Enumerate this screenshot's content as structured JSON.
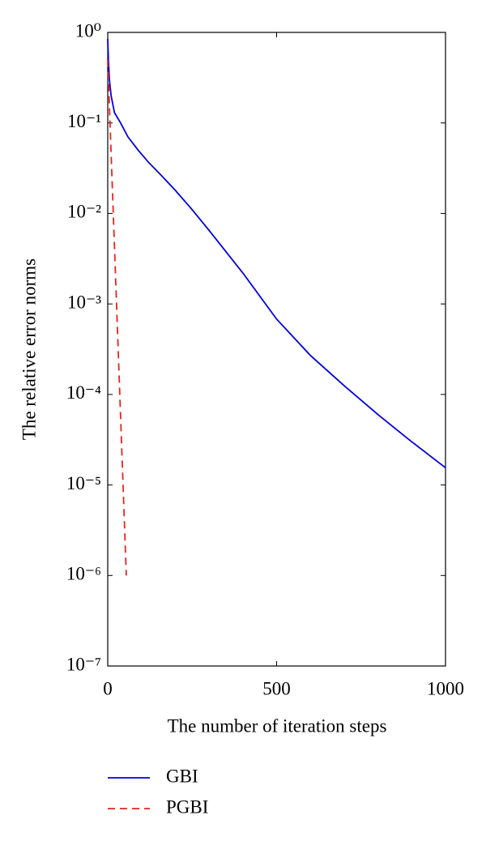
{
  "chart_data": {
    "type": "line",
    "xlabel": "The number of iteration steps",
    "ylabel": "The relative error norms",
    "yscale": "log",
    "xlim": [
      0,
      1000
    ],
    "xticks": [
      0,
      500,
      1000
    ],
    "ylim": [
      1e-07,
      1
    ],
    "yticks": [
      {
        "value": 1,
        "label": "10⁰"
      },
      {
        "value": 0.1,
        "label": "10⁻¹"
      },
      {
        "value": 0.01,
        "label": "10⁻²"
      },
      {
        "value": 0.001,
        "label": "10⁻³"
      },
      {
        "value": 0.0001,
        "label": "10⁻⁴"
      },
      {
        "value": 1e-05,
        "label": "10⁻⁵"
      },
      {
        "value": 1e-06,
        "label": "10⁻⁶"
      },
      {
        "value": 1e-07,
        "label": "10⁻⁷"
      }
    ],
    "grid": false,
    "legend": "below",
    "series": [
      {
        "name": "GBI",
        "color": "#0000dd",
        "linestyle": "solid",
        "x": [
          0,
          2,
          5,
          10,
          20,
          38,
          60,
          90,
          120,
          160,
          200,
          250,
          300,
          400,
          500,
          600,
          700,
          800,
          900,
          1000
        ],
        "values": [
          0.85,
          0.5,
          0.3,
          0.2,
          0.13,
          0.1,
          0.07,
          0.05,
          0.037,
          0.026,
          0.018,
          0.011,
          0.0065,
          0.0022,
          0.00068,
          0.00027,
          0.000125,
          6e-05,
          3e-05,
          1.55e-05
        ]
      },
      {
        "name": "PGBI",
        "color": "#e8231e",
        "linestyle": "dashed",
        "x": [
          0,
          10,
          20,
          30,
          40,
          55
        ],
        "values": [
          0.5,
          0.046,
          0.0043,
          0.00039,
          3.6e-05,
          1e-06
        ]
      }
    ]
  }
}
